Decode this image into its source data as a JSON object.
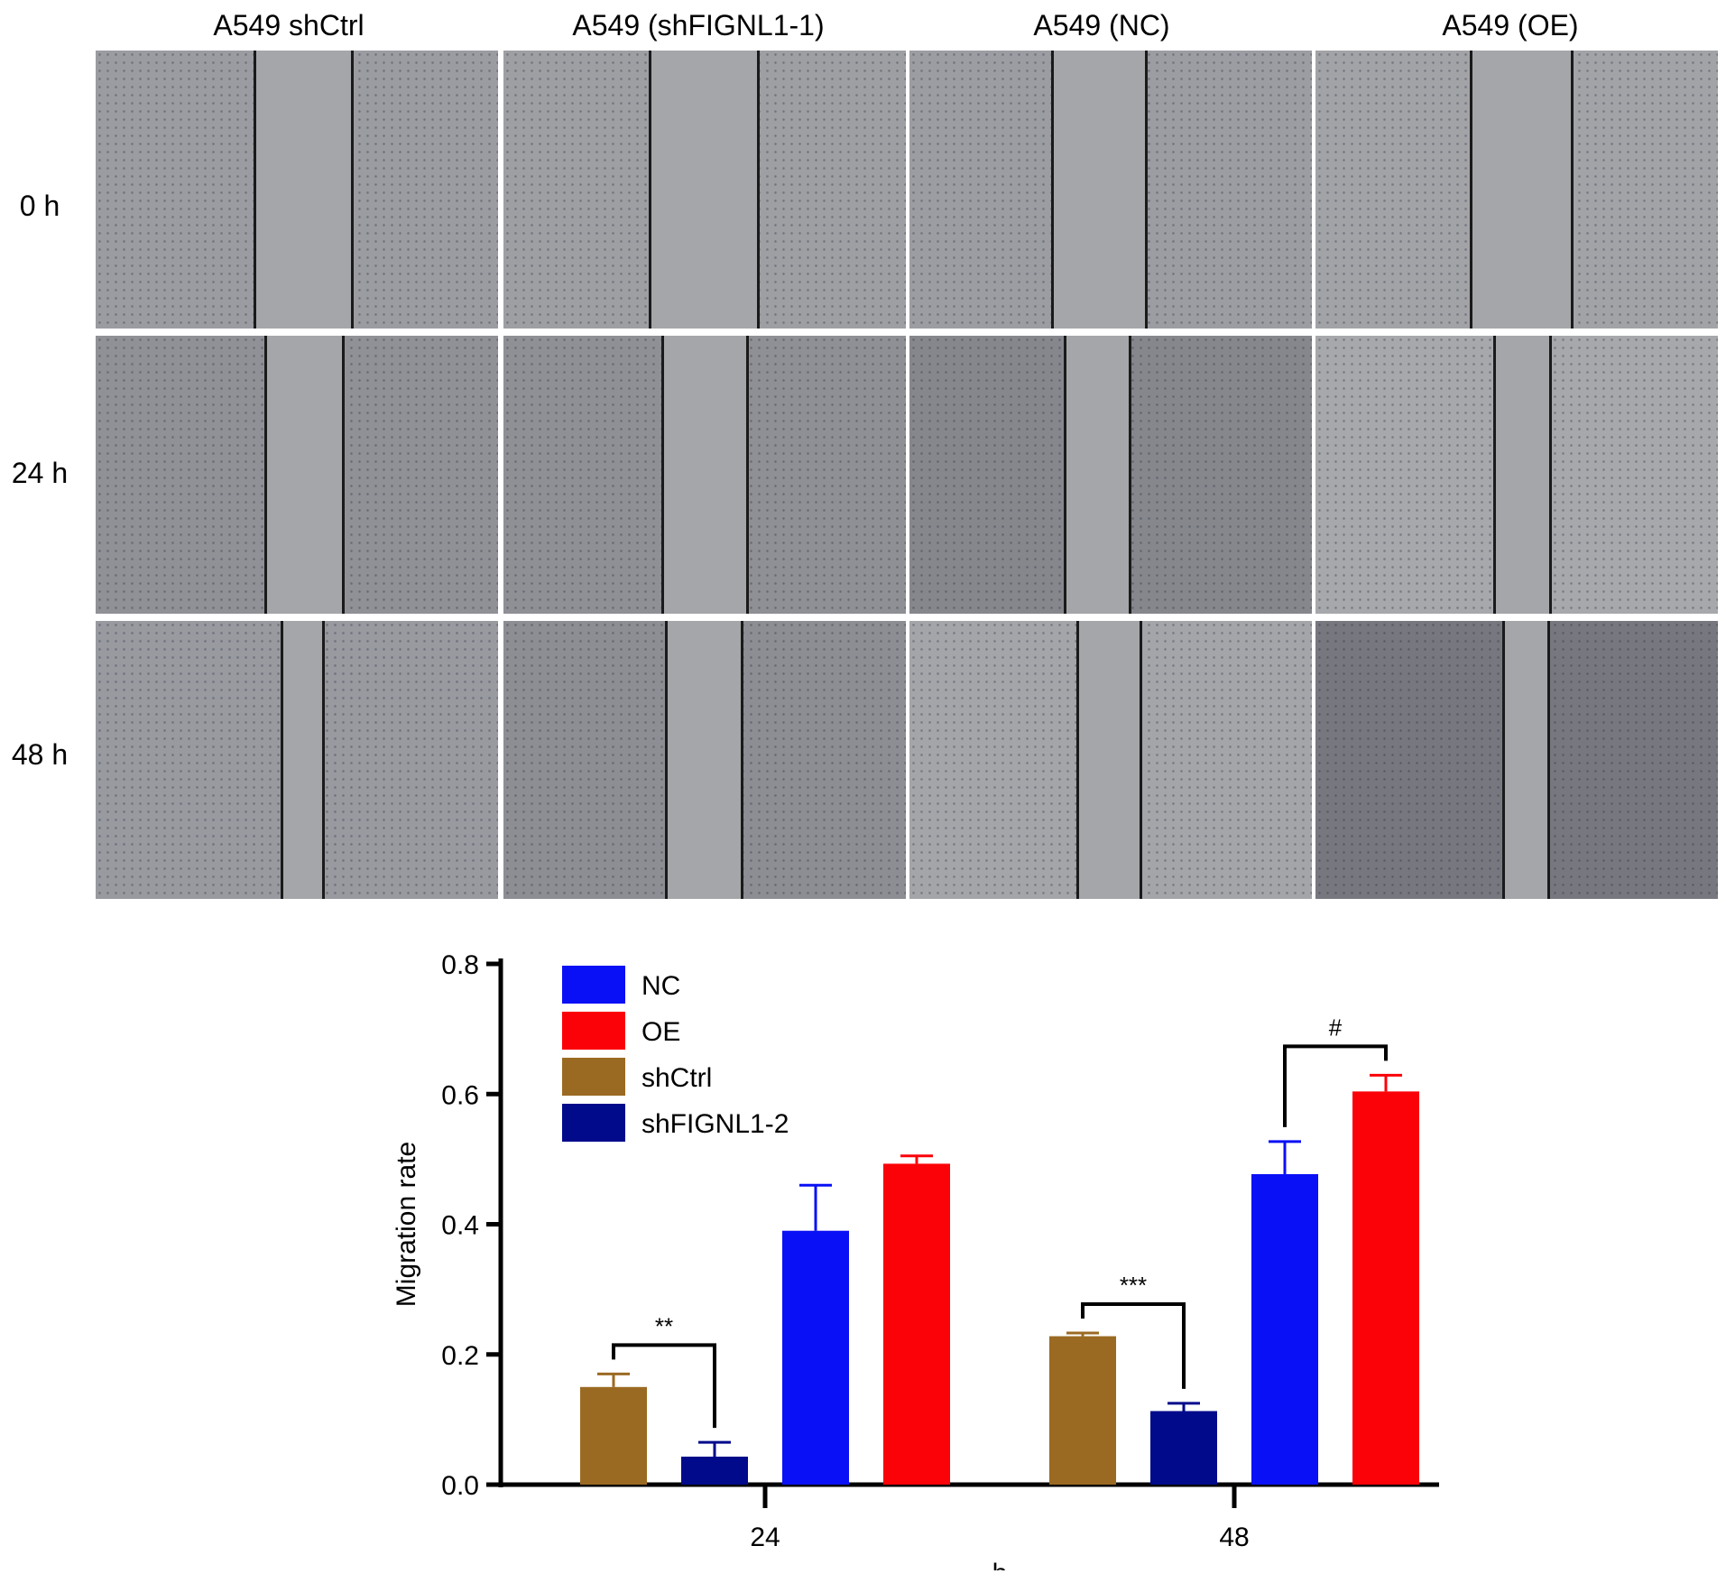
{
  "figure": {
    "columns": [
      "A549 shCtrl",
      "A549 (shFIGNL1-1)",
      "A549 (NC)",
      "A549 (OE)"
    ],
    "rows": [
      "0 h",
      "24 h",
      "48 h"
    ]
  },
  "chart_data": {
    "type": "bar",
    "xlabel": "h",
    "ylabel": "Migration rate",
    "categories": [
      "24",
      "48"
    ],
    "ylim": [
      0,
      0.8
    ],
    "yticks": [
      "0.0",
      "0.2",
      "0.4",
      "0.6",
      "0.8"
    ],
    "legend_position": "top-left",
    "series": [
      {
        "name": "shCtrl",
        "color": "#9b6a22",
        "values": [
          0.15,
          0.228
        ],
        "errors": [
          0.02,
          0.005
        ]
      },
      {
        "name": "shFIGNL1-2",
        "color": "#000a8b",
        "values": [
          0.043,
          0.113
        ],
        "errors": [
          0.022,
          0.012
        ]
      },
      {
        "name": "NC",
        "color": "#0a10f5",
        "values": [
          0.39,
          0.477
        ],
        "errors": [
          0.07,
          0.05
        ]
      },
      {
        "name": "OE",
        "color": "#fb0208",
        "values": [
          0.493,
          0.604
        ],
        "errors": [
          0.012,
          0.025
        ]
      }
    ],
    "legend_order": [
      "NC",
      "OE",
      "shCtrl",
      "shFIGNL1-2"
    ],
    "annotations": [
      {
        "text": "**",
        "category": "24",
        "from": "shCtrl",
        "to": "shFIGNL1-2"
      },
      {
        "text": "***",
        "category": "48",
        "from": "shCtrl",
        "to": "shFIGNL1-2"
      },
      {
        "text": "#",
        "category": "48",
        "from": "NC",
        "to": "OE"
      }
    ]
  }
}
